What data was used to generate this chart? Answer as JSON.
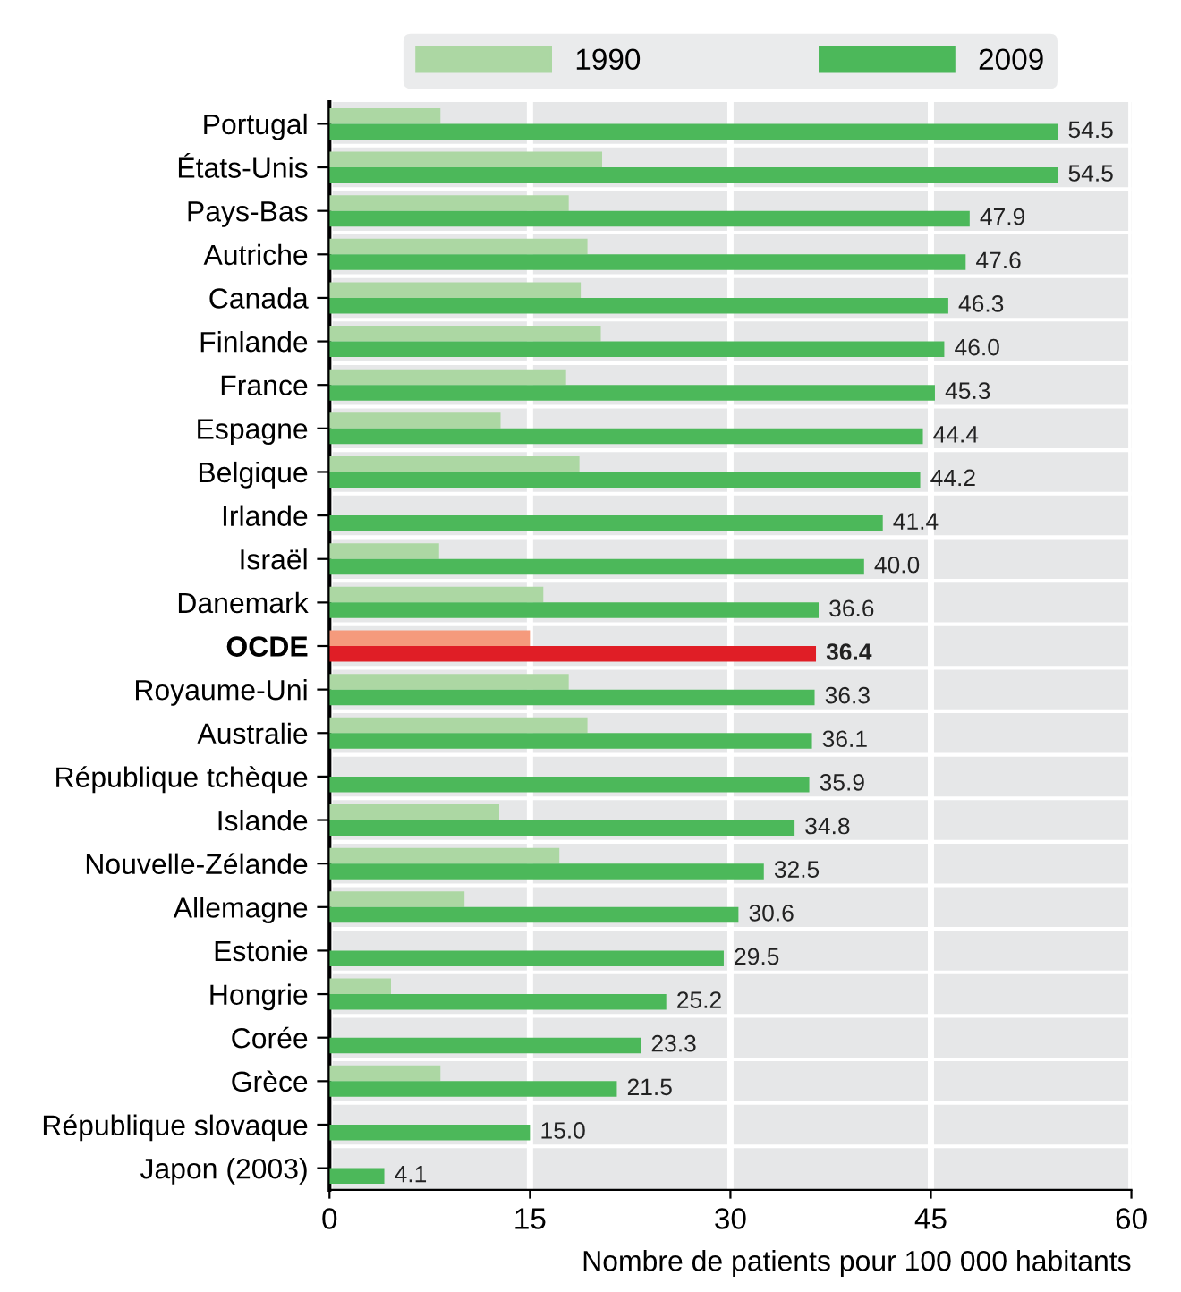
{
  "chart_data": {
    "type": "bar",
    "orientation": "horizontal",
    "xlabel": "Nombre de patients pour 100 000 habitants",
    "categories": [
      "Portugal",
      "États-Unis",
      "Pays-Bas",
      "Autriche",
      "Canada",
      "Finlande",
      "France",
      "Espagne",
      "Belgique",
      "Irlande",
      "Israël",
      "Danemark",
      "OCDE",
      "Royaume-Uni",
      "Australie",
      "République tchèque",
      "Islande",
      "Nouvelle-Zélande",
      "Allemagne",
      "Estonie",
      "Hongrie",
      "Corée",
      "Grèce",
      "République slovaque",
      "Japon (2003)"
    ],
    "series": [
      {
        "name": "1990",
        "color": "#acd7a3",
        "colors": [
          "#acd7a3",
          "#acd7a3",
          "#acd7a3",
          "#acd7a3",
          "#acd7a3",
          "#acd7a3",
          "#acd7a3",
          "#acd7a3",
          "#acd7a3",
          "#acd7a3",
          "#acd7a3",
          "#acd7a3",
          "#f59a7c",
          "#acd7a3",
          "#acd7a3",
          "#acd7a3",
          "#acd7a3",
          "#acd7a3",
          "#acd7a3",
          "#acd7a3",
          "#acd7a3",
          "#acd7a3",
          "#acd7a3",
          "#acd7a3",
          "#acd7a3"
        ],
        "values": [
          8.3,
          20.4,
          17.9,
          19.3,
          18.8,
          20.3,
          17.7,
          12.8,
          18.7,
          null,
          8.2,
          16.0,
          15.0,
          17.9,
          19.3,
          null,
          12.7,
          17.2,
          10.1,
          null,
          4.6,
          null,
          8.3,
          null,
          null
        ]
      },
      {
        "name": "2009",
        "color": "#4cb85a",
        "colors": [
          "#4cb85a",
          "#4cb85a",
          "#4cb85a",
          "#4cb85a",
          "#4cb85a",
          "#4cb85a",
          "#4cb85a",
          "#4cb85a",
          "#4cb85a",
          "#4cb85a",
          "#4cb85a",
          "#4cb85a",
          "#e01e26",
          "#4cb85a",
          "#4cb85a",
          "#4cb85a",
          "#4cb85a",
          "#4cb85a",
          "#4cb85a",
          "#4cb85a",
          "#4cb85a",
          "#4cb85a",
          "#4cb85a",
          "#4cb85a",
          "#4cb85a"
        ],
        "values": [
          54.5,
          54.5,
          47.9,
          47.6,
          46.3,
          46.0,
          45.3,
          44.4,
          44.2,
          41.4,
          40.0,
          36.6,
          36.4,
          36.3,
          36.1,
          35.9,
          34.8,
          32.5,
          30.6,
          29.5,
          25.2,
          23.3,
          21.5,
          15.0,
          4.1
        ],
        "value_labels": [
          "54.5",
          "54.5",
          "47.9",
          "47.6",
          "46.3",
          "46.0",
          "45.3",
          "44.4",
          "44.2",
          "41.4",
          "40.0",
          "36.6",
          "36.4",
          "36.3",
          "36.1",
          "35.9",
          "34.8",
          "32.5",
          "30.6",
          "29.5",
          "25.2",
          "23.3",
          "21.5",
          "15.0",
          "4.1"
        ]
      }
    ],
    "xlim": [
      0,
      60
    ],
    "xticks": [
      0,
      15,
      30,
      45,
      60
    ],
    "grid": "x",
    "legend": "top"
  }
}
